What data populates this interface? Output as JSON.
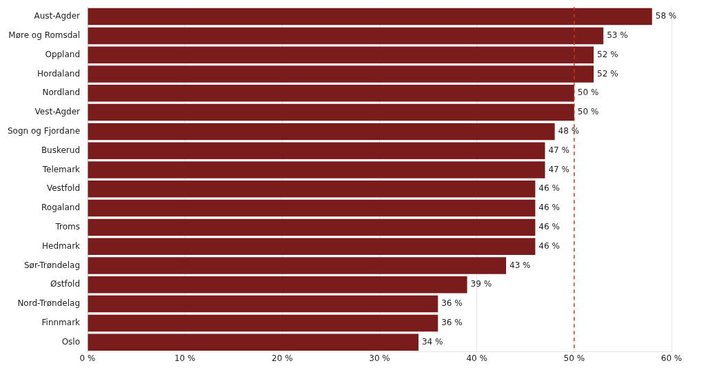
{
  "chart_data": {
    "type": "bar",
    "orientation": "horizontal",
    "categories": [
      "Oslo",
      "Finnmark",
      "Nord-Trøndelag",
      "Østfold",
      "Sør-Trøndelag",
      "Hedmark",
      "Troms",
      "Rogaland",
      "Vestfold",
      "Telemark",
      "Buskerud",
      "Sogn og Fjordane",
      "Vest-Agder",
      "Nordland",
      "Hordaland",
      "Oppland",
      "Møre og Romsdal",
      "Aust-Agder"
    ],
    "values": [
      34,
      36,
      36,
      39,
      43,
      46,
      46,
      46,
      46,
      47,
      47,
      48,
      50,
      50,
      52,
      52,
      53,
      58
    ],
    "value_labels": [
      "34 %",
      "36 %",
      "36 %",
      "39 %",
      "43 %",
      "46 %",
      "46 %",
      "46 %",
      "46 %",
      "47 %",
      "47 %",
      "48 %",
      "50 %",
      "50 %",
      "52 %",
      "52 %",
      "53 %",
      "58 %"
    ],
    "data_labels": true,
    "color": "#7B1C1C",
    "xlim": [
      0,
      60
    ],
    "xticks": [
      {
        "value": 0,
        "label": "0 %"
      },
      {
        "value": 10,
        "label": "10 %"
      },
      {
        "value": 20,
        "label": "20 %"
      },
      {
        "value": 30,
        "label": "30 %"
      },
      {
        "value": 40,
        "label": "40 %"
      },
      {
        "value": 50,
        "label": "50 %"
      },
      {
        "value": 60,
        "label": "60 %"
      }
    ],
    "reference_lines": [
      {
        "x": 50,
        "color": "#C0392B",
        "line_style": "dashed"
      }
    ],
    "grid": "x",
    "legend": false
  }
}
